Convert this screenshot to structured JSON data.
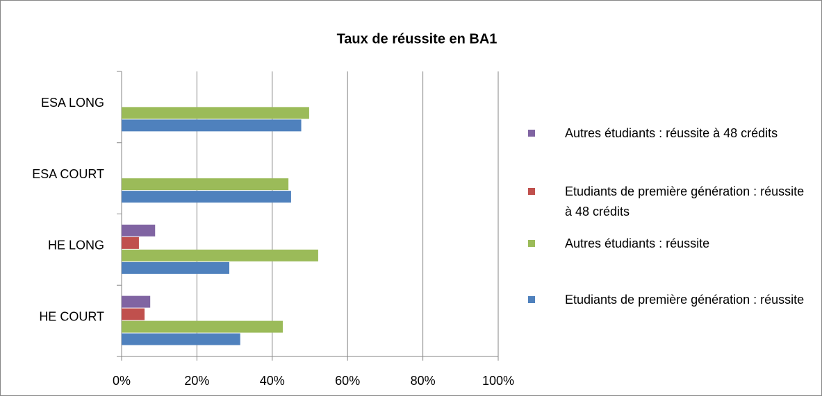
{
  "chart_data": {
    "type": "bar",
    "orientation": "horizontal",
    "title": "Taux de réussite en BA1",
    "categories": [
      "HE COURT",
      "HE LONG",
      "ESA COURT",
      "ESA LONG"
    ],
    "series": [
      {
        "name": "Etudiants de première génération : réussite",
        "color": "#4f81bd",
        "values": [
          31.5,
          28.6,
          45.0,
          47.7
        ]
      },
      {
        "name": "Autres étudiants : réussite",
        "color": "#9bbb59",
        "values": [
          42.8,
          52.2,
          44.3,
          49.8
        ]
      },
      {
        "name": "Etudiants de première génération : réussite à 48 crédits",
        "color": "#c0504d",
        "values": [
          6.1,
          4.6,
          null,
          null
        ]
      },
      {
        "name": "Autres étudiants : réussite à 48 crédits",
        "color": "#8064a2",
        "values": [
          7.6,
          8.9,
          null,
          null
        ]
      }
    ],
    "xlim": [
      0,
      100
    ],
    "xticks": [
      {
        "value": 0,
        "label": "0%"
      },
      {
        "value": 20,
        "label": "20%"
      },
      {
        "value": 40,
        "label": "40%"
      },
      {
        "value": 60,
        "label": "60%"
      },
      {
        "value": 80,
        "label": "80%"
      },
      {
        "value": 100,
        "label": "100%"
      }
    ],
    "grid": true,
    "legend": "right"
  }
}
